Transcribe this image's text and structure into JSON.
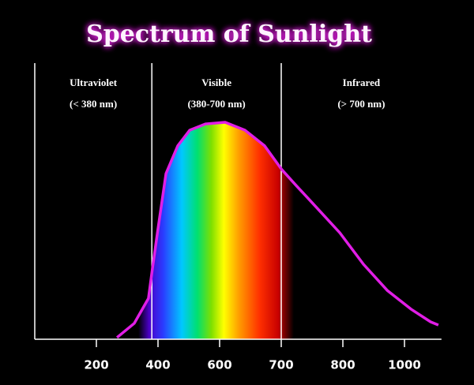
{
  "chart_data": {
    "type": "line",
    "title": "Spectrum of Sunlight",
    "x": [
      267,
      323,
      369,
      382,
      400,
      426,
      464,
      503,
      554,
      609,
      641,
      673,
      701,
      724,
      756,
      795,
      867,
      944,
      1021,
      1085,
      1110
    ],
    "series": [
      {
        "color": "#e11ee6",
        "values": [
          0.6,
          5.6,
          14.4,
          25,
          38.9,
          58.3,
          68.1,
          73.6,
          75.8,
          76.4,
          73.6,
          68.1,
          59.7,
          54.2,
          46.7,
          37.5,
          26.4,
          17.2,
          10.6,
          6.1,
          5
        ]
      }
    ],
    "xlim": [
      0,
      1120
    ],
    "xticks": [
      200,
      400,
      600,
      700,
      800,
      1000
    ],
    "ylim": [
      0,
      100
    ],
    "dividers": [
      380,
      700
    ],
    "regions": [
      {
        "name": "Ultraviolet",
        "range": "(< 380 nm)"
      },
      {
        "name": "Visible",
        "range": "(380-700 nm)"
      },
      {
        "name": "Infrared",
        "range": "(> 700 nm)"
      }
    ]
  }
}
